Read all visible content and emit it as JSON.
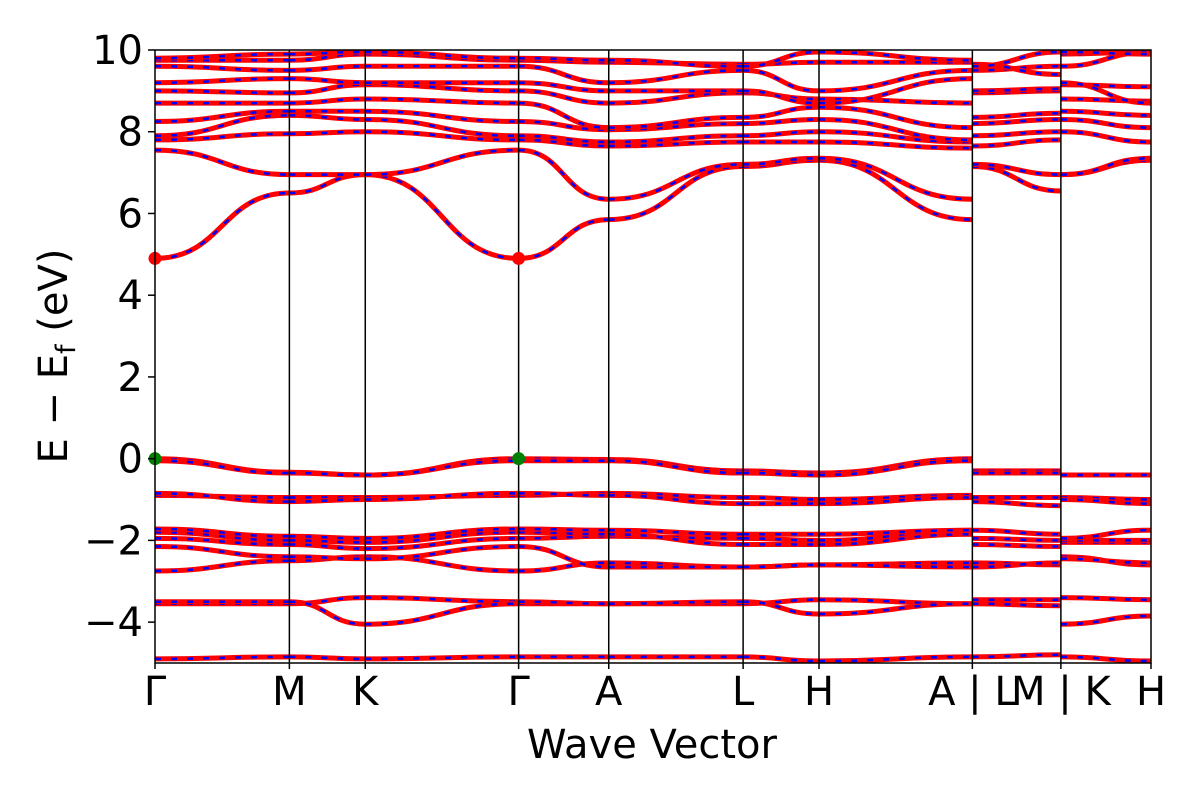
{
  "chart_data": {
    "type": "line",
    "title": "",
    "xlabel": "Wave Vector",
    "ylabel": "E − E",
    "ylabel_subscript": "f",
    "ylabel_unit": " (eV)",
    "ylim": [
      -5,
      10
    ],
    "yticks": [
      10,
      8,
      6,
      4,
      2,
      0,
      -2,
      -4
    ],
    "ytick_labels": [
      "10",
      "8",
      "6",
      "4",
      "2",
      "0",
      "−2",
      "−4"
    ],
    "x_range": [
      0,
      6.3
    ],
    "kpoints": [
      {
        "x": 0.0,
        "label": "Γ"
      },
      {
        "x": 0.85,
        "label": "M"
      },
      {
        "x": 1.33,
        "label": "K"
      },
      {
        "x": 2.3,
        "label": "Γ"
      },
      {
        "x": 2.87,
        "label": "A"
      },
      {
        "x": 3.72,
        "label": "L"
      },
      {
        "x": 4.2,
        "label": "H"
      },
      {
        "x": 5.17,
        "label": "A | L"
      },
      {
        "x": 5.73,
        "label": "M | K"
      },
      {
        "x": 6.3,
        "label": "H"
      }
    ],
    "series_colors": {
      "spin_up": "#ff0000",
      "spin_down": "#0000ff"
    },
    "segments": [
      {
        "x0": 0.0,
        "x1": 0.85,
        "bands": [
          [
            -4.9,
            -4.85
          ],
          [
            -3.55,
            -3.55
          ],
          [
            -3.5,
            -3.5
          ],
          [
            -2.75,
            -2.5
          ],
          [
            -2.15,
            -2.4
          ],
          [
            -1.95,
            -2.1
          ],
          [
            -1.8,
            -2.0
          ],
          [
            -1.72,
            -1.9
          ],
          [
            -0.9,
            -0.95
          ],
          [
            -0.85,
            -1.05
          ],
          [
            0.0,
            -0.33
          ],
          [
            -0.05,
            -0.35
          ],
          [
            4.9,
            6.5
          ],
          [
            7.55,
            6.95
          ],
          [
            7.8,
            7.95
          ],
          [
            7.9,
            8.4
          ],
          [
            8.25,
            8.5
          ],
          [
            8.7,
            8.7
          ],
          [
            9.0,
            8.95
          ],
          [
            9.2,
            9.3
          ],
          [
            9.6,
            9.5
          ],
          [
            9.75,
            9.75
          ],
          [
            9.8,
            9.9
          ]
        ]
      },
      {
        "x0": 0.85,
        "x1": 1.33,
        "bands": [
          [
            -4.85,
            -4.9
          ],
          [
            -3.55,
            -3.4
          ],
          [
            -3.5,
            -4.05
          ],
          [
            -2.5,
            -2.4
          ],
          [
            -2.4,
            -2.45
          ],
          [
            -2.1,
            -2.2
          ],
          [
            -2.0,
            -2.05
          ],
          [
            -1.9,
            -1.95
          ],
          [
            -0.95,
            -0.95
          ],
          [
            -1.05,
            -1.0
          ],
          [
            -0.33,
            -0.4
          ],
          [
            -0.35,
            -0.4
          ],
          [
            6.5,
            6.95
          ],
          [
            6.95,
            6.95
          ],
          [
            7.95,
            8.0
          ],
          [
            8.4,
            8.3
          ],
          [
            8.5,
            8.5
          ],
          [
            8.7,
            8.8
          ],
          [
            8.95,
            9.15
          ],
          [
            9.3,
            9.2
          ],
          [
            9.5,
            9.6
          ],
          [
            9.75,
            9.9
          ],
          [
            9.9,
            9.95
          ]
        ]
      },
      {
        "x0": 1.33,
        "x1": 2.3,
        "bands": [
          [
            -4.9,
            -4.85
          ],
          [
            -3.4,
            -3.5
          ],
          [
            -4.05,
            -3.55
          ],
          [
            -2.4,
            -2.75
          ],
          [
            -2.45,
            -2.15
          ],
          [
            -2.2,
            -1.95
          ],
          [
            -2.05,
            -1.8
          ],
          [
            -1.95,
            -1.72
          ],
          [
            -0.95,
            -0.9
          ],
          [
            -1.0,
            -0.85
          ],
          [
            -0.4,
            0.0
          ],
          [
            -0.4,
            -0.05
          ],
          [
            6.95,
            4.9
          ],
          [
            6.95,
            7.55
          ],
          [
            8.0,
            7.8
          ],
          [
            8.3,
            7.9
          ],
          [
            8.5,
            8.25
          ],
          [
            8.8,
            8.7
          ],
          [
            9.15,
            9.0
          ],
          [
            9.2,
            9.2
          ],
          [
            9.6,
            9.6
          ],
          [
            9.9,
            9.75
          ],
          [
            9.95,
            9.8
          ]
        ]
      },
      {
        "x0": 2.3,
        "x1": 2.87,
        "bands": [
          [
            -4.85,
            -4.85
          ],
          [
            -3.55,
            -3.55
          ],
          [
            -3.5,
            -3.55
          ],
          [
            -2.75,
            -2.55
          ],
          [
            -2.15,
            -2.65
          ],
          [
            -1.95,
            -1.9
          ],
          [
            -1.8,
            -1.85
          ],
          [
            -1.72,
            -1.75
          ],
          [
            -0.9,
            -0.85
          ],
          [
            -0.85,
            -0.9
          ],
          [
            0.0,
            -0.02
          ],
          [
            -0.05,
            -0.05
          ],
          [
            4.9,
            5.85
          ],
          [
            7.55,
            6.35
          ],
          [
            7.8,
            7.65
          ],
          [
            7.9,
            7.75
          ],
          [
            8.25,
            8.05
          ],
          [
            8.7,
            8.1
          ],
          [
            9.0,
            8.7
          ],
          [
            9.2,
            9.0
          ],
          [
            9.6,
            9.2
          ],
          [
            9.75,
            9.7
          ],
          [
            9.8,
            9.75
          ]
        ]
      },
      {
        "x0": 2.87,
        "x1": 3.72,
        "bands": [
          [
            -4.85,
            -4.85
          ],
          [
            -3.55,
            -3.55
          ],
          [
            -3.55,
            -3.5
          ],
          [
            -2.55,
            -2.65
          ],
          [
            -2.65,
            -2.65
          ],
          [
            -1.9,
            -1.95
          ],
          [
            -1.85,
            -2.1
          ],
          [
            -1.75,
            -1.85
          ],
          [
            -0.85,
            -0.95
          ],
          [
            -0.9,
            -1.1
          ],
          [
            -0.02,
            -0.3
          ],
          [
            -0.05,
            -0.35
          ],
          [
            5.85,
            7.15
          ],
          [
            6.35,
            7.2
          ],
          [
            7.65,
            7.75
          ],
          [
            7.75,
            7.9
          ],
          [
            8.05,
            8.2
          ],
          [
            8.1,
            8.35
          ],
          [
            8.7,
            8.95
          ],
          [
            9.0,
            9.0
          ],
          [
            9.2,
            9.5
          ],
          [
            9.7,
            9.65
          ],
          [
            9.75,
            9.6
          ]
        ]
      },
      {
        "x0": 3.72,
        "x1": 4.2,
        "bands": [
          [
            -4.85,
            -4.95
          ],
          [
            -3.55,
            -3.45
          ],
          [
            -3.5,
            -3.8
          ],
          [
            -2.65,
            -2.6
          ],
          [
            -2.65,
            -2.6
          ],
          [
            -1.95,
            -2.0
          ],
          [
            -2.1,
            -2.1
          ],
          [
            -1.85,
            -1.85
          ],
          [
            -0.95,
            -1.0
          ],
          [
            -1.1,
            -1.1
          ],
          [
            -0.3,
            -0.35
          ],
          [
            -0.35,
            -0.4
          ],
          [
            7.15,
            7.3
          ],
          [
            7.2,
            7.35
          ],
          [
            7.75,
            7.75
          ],
          [
            7.9,
            8.0
          ],
          [
            8.2,
            8.3
          ],
          [
            8.35,
            8.6
          ],
          [
            8.95,
            8.8
          ],
          [
            9.0,
            8.7
          ],
          [
            9.5,
            9.0
          ],
          [
            9.65,
            9.7
          ],
          [
            9.6,
            9.95
          ]
        ]
      },
      {
        "x0": 4.2,
        "x1": 5.17,
        "bands": [
          [
            -4.95,
            -4.85
          ],
          [
            -3.45,
            -3.55
          ],
          [
            -3.8,
            -3.55
          ],
          [
            -2.6,
            -2.55
          ],
          [
            -2.6,
            -2.65
          ],
          [
            -2.0,
            -1.75
          ],
          [
            -2.1,
            -1.85
          ],
          [
            -1.85,
            -1.75
          ],
          [
            -1.0,
            -0.9
          ],
          [
            -1.1,
            -0.95
          ],
          [
            -0.35,
            0.0
          ],
          [
            -0.4,
            -0.05
          ],
          [
            7.3,
            5.85
          ],
          [
            7.35,
            6.35
          ],
          [
            7.75,
            7.6
          ],
          [
            8.0,
            7.75
          ],
          [
            8.3,
            7.8
          ],
          [
            8.6,
            8.1
          ],
          [
            8.8,
            8.7
          ],
          [
            8.7,
            9.3
          ],
          [
            9.0,
            9.5
          ],
          [
            9.7,
            9.7
          ],
          [
            9.95,
            9.75
          ]
        ]
      },
      {
        "x0": 5.17,
        "x1": 5.73,
        "bands": [
          [
            -4.85,
            -4.8
          ],
          [
            -3.45,
            -3.45
          ],
          [
            -3.55,
            -3.6
          ],
          [
            -2.55,
            -2.6
          ],
          [
            -2.65,
            -2.55
          ],
          [
            -1.95,
            -2.0
          ],
          [
            -2.1,
            -2.15
          ],
          [
            -1.75,
            -1.85
          ],
          [
            -0.95,
            -0.95
          ],
          [
            -1.05,
            -1.15
          ],
          [
            -0.3,
            -0.3
          ],
          [
            -0.35,
            -0.35
          ],
          [
            7.15,
            6.55
          ],
          [
            7.2,
            6.95
          ],
          [
            7.65,
            7.8
          ],
          [
            7.9,
            8.0
          ],
          [
            8.2,
            8.3
          ],
          [
            8.35,
            8.45
          ],
          [
            8.95,
            9.0
          ],
          [
            9.0,
            9.05
          ],
          [
            9.5,
            9.6
          ],
          [
            9.65,
            9.4
          ],
          [
            9.6,
            9.95
          ]
        ]
      },
      {
        "x0": 5.73,
        "x1": 6.3,
        "bands": [
          [
            -4.85,
            -4.95
          ],
          [
            -3.4,
            -3.45
          ],
          [
            -4.05,
            -3.85
          ],
          [
            -2.4,
            -2.6
          ],
          [
            -2.45,
            -2.55
          ],
          [
            -2.05,
            -2.05
          ],
          [
            -2.0,
            -2.0
          ],
          [
            -1.95,
            -1.75
          ],
          [
            -0.95,
            -1.0
          ],
          [
            -1.0,
            -1.1
          ],
          [
            -0.4,
            -0.4
          ],
          [
            -0.4,
            -0.4
          ],
          [
            6.95,
            7.3
          ],
          [
            6.95,
            7.35
          ],
          [
            8.0,
            7.75
          ],
          [
            8.3,
            8.1
          ],
          [
            8.5,
            8.4
          ],
          [
            8.8,
            8.75
          ],
          [
            9.15,
            9.1
          ],
          [
            9.2,
            8.7
          ],
          [
            9.6,
            9.95
          ],
          [
            9.9,
            9.95
          ],
          [
            9.95,
            9.9
          ]
        ]
      }
    ],
    "markers": [
      {
        "x": 0.0,
        "y": 4.9,
        "color": "#ff0000",
        "name": "cbm-marker"
      },
      {
        "x": 2.3,
        "y": 4.9,
        "color": "#ff0000",
        "name": "cbm-marker"
      },
      {
        "x": 0.0,
        "y": 0.0,
        "color": "#008000",
        "name": "vbm-marker"
      },
      {
        "x": 2.3,
        "y": 0.0,
        "color": "#008000",
        "name": "vbm-marker"
      }
    ]
  }
}
